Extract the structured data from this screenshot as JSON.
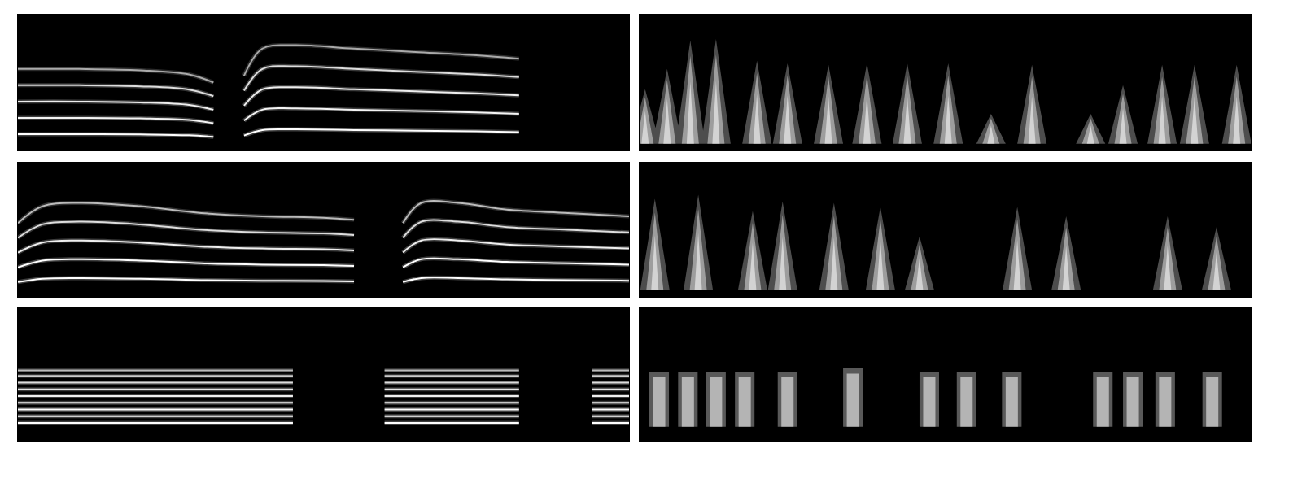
{
  "chart_data": [
    {
      "type": "line",
      "xlim": [
        0,
        1
      ],
      "ylim": [
        0,
        1
      ],
      "tick_labels": false,
      "grid": false,
      "x": [
        0,
        0.1,
        0.2,
        0.28,
        0.32,
        0.34,
        0.37,
        0.4,
        0.45,
        0.55,
        0.65,
        0.75,
        0.82
      ],
      "series": [
        {
          "color": "#ffffff",
          "values": [
            0.12,
            0.12,
            0.118,
            0.112,
            0.1,
            null,
            0.11,
            0.15,
            0.155,
            0.15,
            0.145,
            0.14,
            0.135
          ]
        },
        {
          "color": "#f4f4f4",
          "values": [
            0.24,
            0.24,
            0.236,
            0.224,
            0.2,
            null,
            0.22,
            0.3,
            0.31,
            0.3,
            0.29,
            0.28,
            0.27
          ]
        },
        {
          "color": "#eeeeee",
          "values": [
            0.36,
            0.36,
            0.354,
            0.336,
            0.3,
            null,
            0.33,
            0.45,
            0.465,
            0.45,
            0.435,
            0.42,
            0.405
          ]
        },
        {
          "color": "#dddddd",
          "values": [
            0.48,
            0.48,
            0.472,
            0.448,
            0.4,
            null,
            0.44,
            0.6,
            0.62,
            0.6,
            0.58,
            0.56,
            0.54
          ]
        },
        {
          "color": "#aaaaaa",
          "values": [
            0.6,
            0.6,
            0.59,
            0.56,
            0.5,
            null,
            0.55,
            0.75,
            0.775,
            0.75,
            0.725,
            0.7,
            0.675
          ]
        }
      ]
    },
    {
      "type": "bar",
      "marker": "triangle",
      "color": "#ffffff",
      "xlim": [
        0,
        1
      ],
      "ylim": [
        0,
        1
      ],
      "tick_labels": false,
      "grid": false,
      "x": [
        0.009,
        0.045,
        0.083,
        0.125,
        0.192,
        0.242,
        0.309,
        0.372,
        0.438,
        0.505,
        0.575,
        0.642,
        0.738,
        0.791,
        0.855,
        0.908,
        0.977
      ],
      "values": [
        0.45,
        0.6,
        0.81,
        0.82,
        0.66,
        0.64,
        0.63,
        0.64,
        0.64,
        0.64,
        0.27,
        0.63,
        0.27,
        0.48,
        0.63,
        0.63,
        0.63
      ],
      "base": [
        0.05,
        0.05,
        0.05,
        0.05,
        0.05,
        0.05,
        0.05,
        0.05,
        0.05,
        0.05,
        0.05,
        0.05,
        0.05,
        0.05,
        0.05,
        0.05,
        0.05
      ]
    },
    {
      "type": "line",
      "xlim": [
        0,
        1
      ],
      "ylim": [
        0,
        1
      ],
      "tick_labels": false,
      "grid": false,
      "x": [
        0,
        0.04,
        0.1,
        0.2,
        0.3,
        0.4,
        0.5,
        0.55,
        0.6,
        0.63,
        0.66,
        0.72,
        0.8,
        0.9,
        1.0
      ],
      "series": [
        {
          "color": "#ffffff",
          "values": [
            0.11,
            0.135,
            0.14,
            0.135,
            0.125,
            0.12,
            0.118,
            0.115,
            null,
            0.11,
            0.14,
            0.14,
            0.13,
            0.125,
            0.12
          ]
        },
        {
          "color": "#ffffff",
          "values": [
            0.22,
            0.27,
            0.28,
            0.27,
            0.25,
            0.24,
            0.236,
            0.23,
            null,
            0.22,
            0.28,
            0.28,
            0.26,
            0.25,
            0.24
          ]
        },
        {
          "color": "#eeeeee",
          "values": [
            0.33,
            0.405,
            0.42,
            0.405,
            0.375,
            0.36,
            0.354,
            0.345,
            null,
            0.33,
            0.42,
            0.42,
            0.39,
            0.375,
            0.36
          ]
        },
        {
          "color": "#dddddd",
          "values": [
            0.44,
            0.54,
            0.56,
            0.54,
            0.5,
            0.48,
            0.472,
            0.46,
            null,
            0.44,
            0.56,
            0.56,
            0.52,
            0.5,
            0.48
          ]
        },
        {
          "color": "#bbbbbb",
          "values": [
            0.55,
            0.675,
            0.7,
            0.675,
            0.625,
            0.6,
            0.59,
            0.575,
            null,
            0.55,
            0.7,
            0.7,
            0.65,
            0.625,
            0.6
          ]
        }
      ]
    },
    {
      "type": "bar",
      "marker": "triangle",
      "color": "#ffffff",
      "xlim": [
        0,
        1
      ],
      "ylim": [
        0,
        1
      ],
      "tick_labels": false,
      "grid": false,
      "x": [
        0.025,
        0.096,
        0.185,
        0.234,
        0.318,
        0.394,
        0.458,
        0.618,
        0.698,
        0.864,
        0.944
      ],
      "values": [
        0.73,
        0.76,
        0.64,
        0.71,
        0.7,
        0.67,
        0.45,
        0.67,
        0.6,
        0.6,
        0.52
      ],
      "base": [
        0.05,
        0.05,
        0.05,
        0.05,
        0.05,
        0.05,
        0.05,
        0.05,
        0.05,
        0.05,
        0.05
      ]
    },
    {
      "type": "line",
      "xlim": [
        0,
        1
      ],
      "ylim": [
        0,
        1
      ],
      "tick_labels": false,
      "grid": false,
      "x": [
        0,
        0.45,
        0.47,
        0.6,
        0.82,
        0.84,
        0.94,
        1.0
      ],
      "series": [
        {
          "color": "#ffffff",
          "values": [
            0.14,
            0.14,
            null,
            0.14,
            0.14,
            null,
            0.14,
            0.14
          ]
        },
        {
          "color": "#ffffff",
          "values": [
            0.19,
            0.19,
            null,
            0.19,
            0.19,
            null,
            0.19,
            0.19
          ]
        },
        {
          "color": "#ffffff",
          "values": [
            0.24,
            0.24,
            null,
            0.24,
            0.24,
            null,
            0.24,
            0.24
          ]
        },
        {
          "color": "#f4f4f4",
          "values": [
            0.29,
            0.29,
            null,
            0.29,
            0.29,
            null,
            0.29,
            0.29
          ]
        },
        {
          "color": "#eeeeee",
          "values": [
            0.34,
            0.34,
            null,
            0.34,
            0.34,
            null,
            0.34,
            0.34
          ]
        },
        {
          "color": "#e6e6e6",
          "values": [
            0.39,
            0.39,
            null,
            0.39,
            0.39,
            null,
            0.39,
            0.39
          ]
        },
        {
          "color": "#dddddd",
          "values": [
            0.44,
            0.44,
            null,
            0.44,
            0.44,
            null,
            0.44,
            0.44
          ]
        },
        {
          "color": "#cccccc",
          "values": [
            0.49,
            0.49,
            null,
            0.49,
            0.49,
            null,
            0.49,
            0.49
          ]
        },
        {
          "color": "#bbbbbb",
          "values": [
            0.53,
            0.53,
            null,
            0.53,
            0.53,
            null,
            0.53,
            0.53
          ]
        }
      ]
    },
    {
      "type": "bar",
      "marker": "square",
      "color": "#ffffff",
      "xlim": [
        0,
        1
      ],
      "ylim": [
        0,
        1
      ],
      "tick_labels": false,
      "grid": false,
      "x": [
        0.032,
        0.079,
        0.125,
        0.172,
        0.242,
        0.349,
        0.474,
        0.535,
        0.609,
        0.758,
        0.807,
        0.86,
        0.937
      ],
      "values": [
        0.52,
        0.52,
        0.52,
        0.52,
        0.52,
        0.55,
        0.52,
        0.52,
        0.52,
        0.52,
        0.52,
        0.52,
        0.52
      ],
      "base": [
        0.11,
        0.11,
        0.11,
        0.11,
        0.11,
        0.11,
        0.11,
        0.11,
        0.11,
        0.11,
        0.11,
        0.11,
        0.11
      ]
    }
  ]
}
